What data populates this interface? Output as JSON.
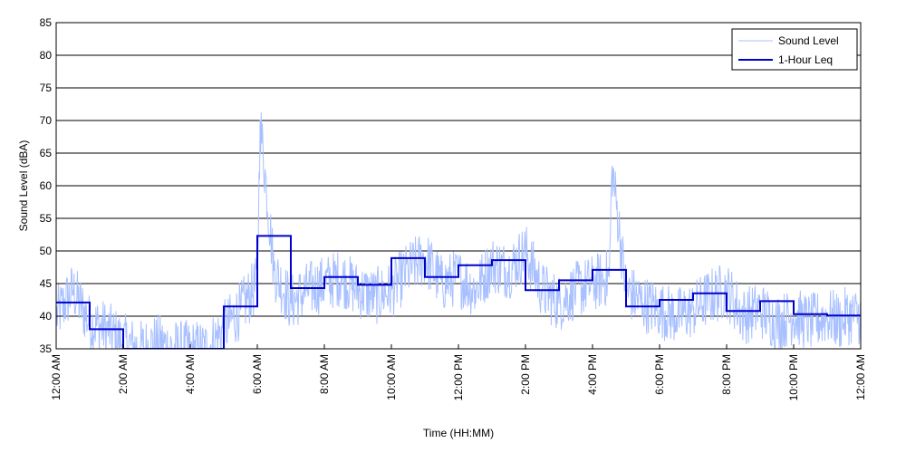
{
  "colors": {
    "background": "#ffffff",
    "gridline": "#000000",
    "sound_level": "#a8c0ff",
    "leq": "#0000cc"
  },
  "chart_data": {
    "type": "line",
    "title": "",
    "xlabel": "Time (HH:MM)",
    "ylabel": "Sound Level (dBA)",
    "xlim": [
      "12:00 AM",
      "12:00 AM (+1 day)"
    ],
    "ylim": [
      35,
      85
    ],
    "grid": true,
    "legend_position": "top-right",
    "x_tick_labels": [
      "12:00 AM",
      "2:00 AM",
      "4:00 AM",
      "6:00 AM",
      "8:00 AM",
      "10:00 AM",
      "12:00 PM",
      "2:00 PM",
      "4:00 PM",
      "6:00 PM",
      "8:00 PM",
      "10:00 PM",
      "12:00 AM"
    ],
    "y_ticks": [
      35,
      40,
      45,
      50,
      55,
      60,
      65,
      70,
      75,
      80,
      85
    ],
    "legend": [
      "Sound Level",
      "1-Hour Leq"
    ],
    "series": [
      {
        "name": "Sound Level",
        "style": "thin-line",
        "x": [
          "12:00 AM",
          "12:30 AM",
          "1:00 AM",
          "1:30 AM",
          "2:00 AM",
          "2:30 AM",
          "3:00 AM",
          "3:30 AM",
          "4:00 AM",
          "4:30 AM",
          "5:00 AM",
          "5:30 AM",
          "6:00 AM",
          "6:05 AM",
          "6:30 AM",
          "7:00 AM",
          "7:30 AM",
          "8:00 AM",
          "8:30 AM",
          "9:00 AM",
          "9:30 AM",
          "10:00 AM",
          "10:30 AM",
          "11:00 AM",
          "11:30 AM",
          "12:00 PM",
          "12:30 PM",
          "1:00 PM",
          "1:30 PM",
          "2:00 PM",
          "2:30 PM",
          "3:00 PM",
          "3:30 PM",
          "4:00 PM",
          "4:30 PM",
          "4:35 PM",
          "5:00 PM",
          "5:30 PM",
          "6:00 PM",
          "6:30 PM",
          "7:00 PM",
          "7:30 PM",
          "8:00 PM",
          "8:30 PM",
          "9:00 PM",
          "9:30 PM",
          "10:00 PM",
          "10:30 PM",
          "11:00 PM",
          "11:30 PM",
          "12:00 AM"
        ],
        "values": [
          40,
          44,
          39,
          38,
          36,
          35,
          36,
          35,
          35,
          35,
          38,
          41,
          45,
          70,
          47,
          42,
          44,
          45,
          46,
          44,
          43,
          44,
          47,
          49,
          45,
          46,
          44,
          48,
          47,
          50,
          44,
          42,
          44,
          45,
          46,
          63,
          44,
          42,
          41,
          40,
          41,
          43,
          44,
          40,
          41,
          39,
          40,
          39,
          40,
          39,
          40
        ]
      },
      {
        "name": "1-Hour Leq",
        "style": "step",
        "x": [
          "12:00 AM",
          "1:00 AM",
          "2:00 AM",
          "3:00 AM",
          "4:00 AM",
          "5:00 AM",
          "6:00 AM",
          "7:00 AM",
          "8:00 AM",
          "9:00 AM",
          "10:00 AM",
          "11:00 AM",
          "12:00 PM",
          "1:00 PM",
          "2:00 PM",
          "3:00 PM",
          "4:00 PM",
          "5:00 PM",
          "6:00 PM",
          "7:00 PM",
          "8:00 PM",
          "9:00 PM",
          "10:00 PM",
          "11:00 PM"
        ],
        "values": [
          42.1,
          38.0,
          35.0,
          35.0,
          35.0,
          41.5,
          52.3,
          44.3,
          46.0,
          44.8,
          48.9,
          46.0,
          47.8,
          48.6,
          44.0,
          45.5,
          47.1,
          41.5,
          42.5,
          43.5,
          40.8,
          42.3,
          40.3,
          40.1
        ]
      }
    ]
  }
}
